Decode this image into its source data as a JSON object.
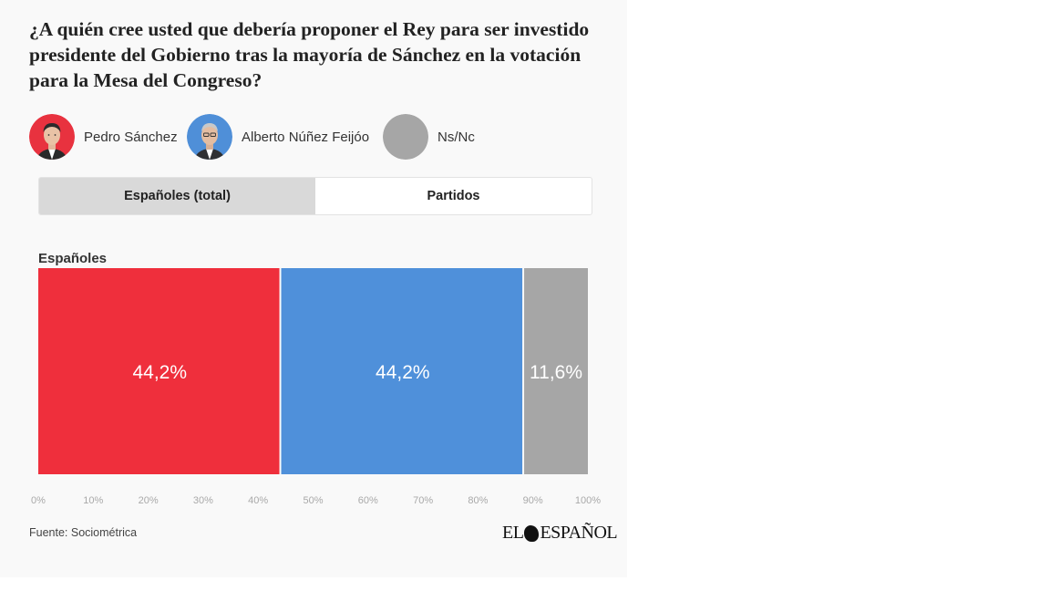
{
  "question": "¿A quién cree usted que debería proponer el Rey para ser investido presidente del Gobierno tras la mayoría de Sánchez en la votación para la Mesa del Congreso?",
  "legend": [
    {
      "label": "Pedro Sánchez",
      "color": "#e8323f",
      "icon": "person-portrait-icon"
    },
    {
      "label": "Alberto Núñez Feijóo",
      "color": "#5090d8",
      "icon": "person-portrait-icon"
    },
    {
      "label": "Ns/Nc",
      "color": "#a6a6a6",
      "icon": "grey-circle-icon"
    }
  ],
  "tabs": [
    {
      "label": "Españoles (total)",
      "active": true
    },
    {
      "label": "Partidos",
      "active": false
    }
  ],
  "chart_data": {
    "type": "bar",
    "orientation": "horizontal",
    "stacked": true,
    "categories": [
      "Españoles"
    ],
    "series": [
      {
        "name": "Pedro Sánchez",
        "values": [
          44.2
        ],
        "label": "44,2%",
        "color": "#ef2f3c"
      },
      {
        "name": "Alberto Núñez Feijóo",
        "values": [
          44.2
        ],
        "label": "44,2%",
        "color": "#4f90da"
      },
      {
        "name": "Ns/Nc",
        "values": [
          11.6
        ],
        "label": "11,6%",
        "color": "#a6a6a6"
      }
    ],
    "xlim": [
      0,
      100
    ],
    "xticks": [
      {
        "value": 0,
        "label": "0%"
      },
      {
        "value": 10,
        "label": "10%"
      },
      {
        "value": 20,
        "label": "20%"
      },
      {
        "value": 30,
        "label": "30%"
      },
      {
        "value": 40,
        "label": "40%"
      },
      {
        "value": 50,
        "label": "50%"
      },
      {
        "value": 60,
        "label": "60%"
      },
      {
        "value": 70,
        "label": "70%"
      },
      {
        "value": 80,
        "label": "80%"
      },
      {
        "value": 90,
        "label": "90%"
      },
      {
        "value": 100,
        "label": "100%"
      }
    ],
    "grid": false,
    "legend_position": "top"
  },
  "source": "Fuente: Sociométrica",
  "logo_text": "EL ESPAÑOL"
}
